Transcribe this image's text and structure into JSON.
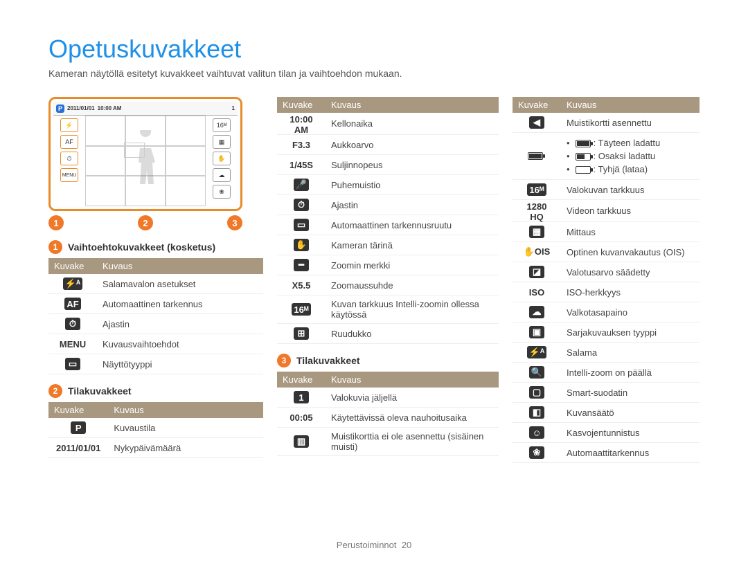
{
  "page": {
    "title": "Opetuskuvakkeet",
    "intro": "Kameran näytöllä esitetyt kuvakkeet vaihtuvat valitun tilan ja vaihtoehdon mukaan.",
    "footer_label": "Perustoiminnot",
    "footer_page": "20"
  },
  "screen": {
    "mode_badge": "P",
    "date": "2011/01/01",
    "time": "10:00 AM",
    "aperture": "F3.3",
    "shutter": "1/45S",
    "rec_time": "00:05",
    "shots": "1",
    "zoom_label": "X5.5",
    "menu_label": "MENU"
  },
  "markers": {
    "m1": "1",
    "m2": "2",
    "m3": "3"
  },
  "headers": {
    "icon": "Kuvake",
    "desc": "Kuvaus"
  },
  "section1": {
    "title": "Vaihtoehtokuvakkeet (kosketus)",
    "rows": [
      {
        "icon": "⚡ᴬ",
        "desc": "Salamavalon asetukset"
      },
      {
        "icon": "AF",
        "desc": "Automaattinen tarkennus"
      },
      {
        "icon": "⏱",
        "desc": "Ajastin"
      },
      {
        "icon": "MENU",
        "desc": "Kuvausvaihtoehdot"
      },
      {
        "icon": "▭",
        "desc": "Näyttötyyppi"
      }
    ]
  },
  "section2": {
    "title": "Tilakuvakkeet",
    "rows": [
      {
        "icon": "P",
        "desc": "Kuvaustila"
      },
      {
        "icon": "2011/01/01",
        "desc": "Nykypäivämäärä"
      }
    ]
  },
  "section2b": {
    "rows": [
      {
        "icon": "10:00 AM",
        "desc": "Kellonaika"
      },
      {
        "icon": "F3.3",
        "desc": "Aukkoarvo"
      },
      {
        "icon": "1/45S",
        "desc": "Suljinnopeus"
      },
      {
        "icon": "🎤",
        "desc": "Puhemuistio"
      },
      {
        "icon": "⏱",
        "desc": "Ajastin"
      },
      {
        "icon": "▭",
        "desc": "Automaattinen tarkennusruutu"
      },
      {
        "icon": "✋",
        "desc": "Kameran tärinä"
      },
      {
        "icon": "━",
        "desc": "Zoomin merkki"
      },
      {
        "icon": "X5.5",
        "desc": "Zoomaussuhde"
      },
      {
        "icon": "16ᴹ",
        "desc": "Kuvan tarkkuus Intelli-zoomin ollessa käytössä"
      },
      {
        "icon": "⊞",
        "desc": "Ruudukko"
      }
    ]
  },
  "section3": {
    "title": "Tilakuvakkeet",
    "rows": [
      {
        "icon": "1",
        "desc": "Valokuvia jäljellä"
      },
      {
        "icon": "00:05",
        "desc": "Käytettävissä oleva nauhoitusaika"
      },
      {
        "icon": "▥",
        "desc": "Muistikorttia ei ole asennettu (sisäinen muisti)"
      }
    ]
  },
  "section3b": {
    "rows": [
      {
        "icon": "◀",
        "desc": "Muistikortti asennettu"
      },
      {
        "battery": true,
        "full": ": Täyteen ladattu",
        "half": ": Osaksi ladattu",
        "empty": ": Tyhjä (lataa)"
      },
      {
        "icon": "16ᴹ",
        "desc": "Valokuvan tarkkuus"
      },
      {
        "icon": "1280 HQ",
        "desc": "Videon tarkkuus"
      },
      {
        "icon": "▦",
        "desc": "Mittaus"
      },
      {
        "icon": "✋OIS",
        "desc": "Optinen kuvanvakautus (OIS)"
      },
      {
        "icon": "◪",
        "desc": "Valotusarvo säädetty"
      },
      {
        "icon": "ISO",
        "desc": "ISO-herkkyys"
      },
      {
        "icon": "☁",
        "desc": "Valkotasapaino"
      },
      {
        "icon": "▣",
        "desc": "Sarjakuvauksen tyyppi"
      },
      {
        "icon": "⚡ᴬ",
        "desc": "Salama"
      },
      {
        "icon": "🔍",
        "desc": "Intelli-zoom on päällä"
      },
      {
        "icon": "▢",
        "desc": "Smart-suodatin"
      },
      {
        "icon": "◧",
        "desc": "Kuvansäätö"
      },
      {
        "icon": "☺",
        "desc": "Kasvojentunnistus"
      },
      {
        "icon": "❀",
        "desc": "Automaattitarkennus"
      }
    ]
  },
  "colors": {
    "accent_blue": "#1e90e8",
    "accent_orange": "#f07828",
    "frame_orange": "#e88b2a",
    "table_header": "#a99880"
  }
}
